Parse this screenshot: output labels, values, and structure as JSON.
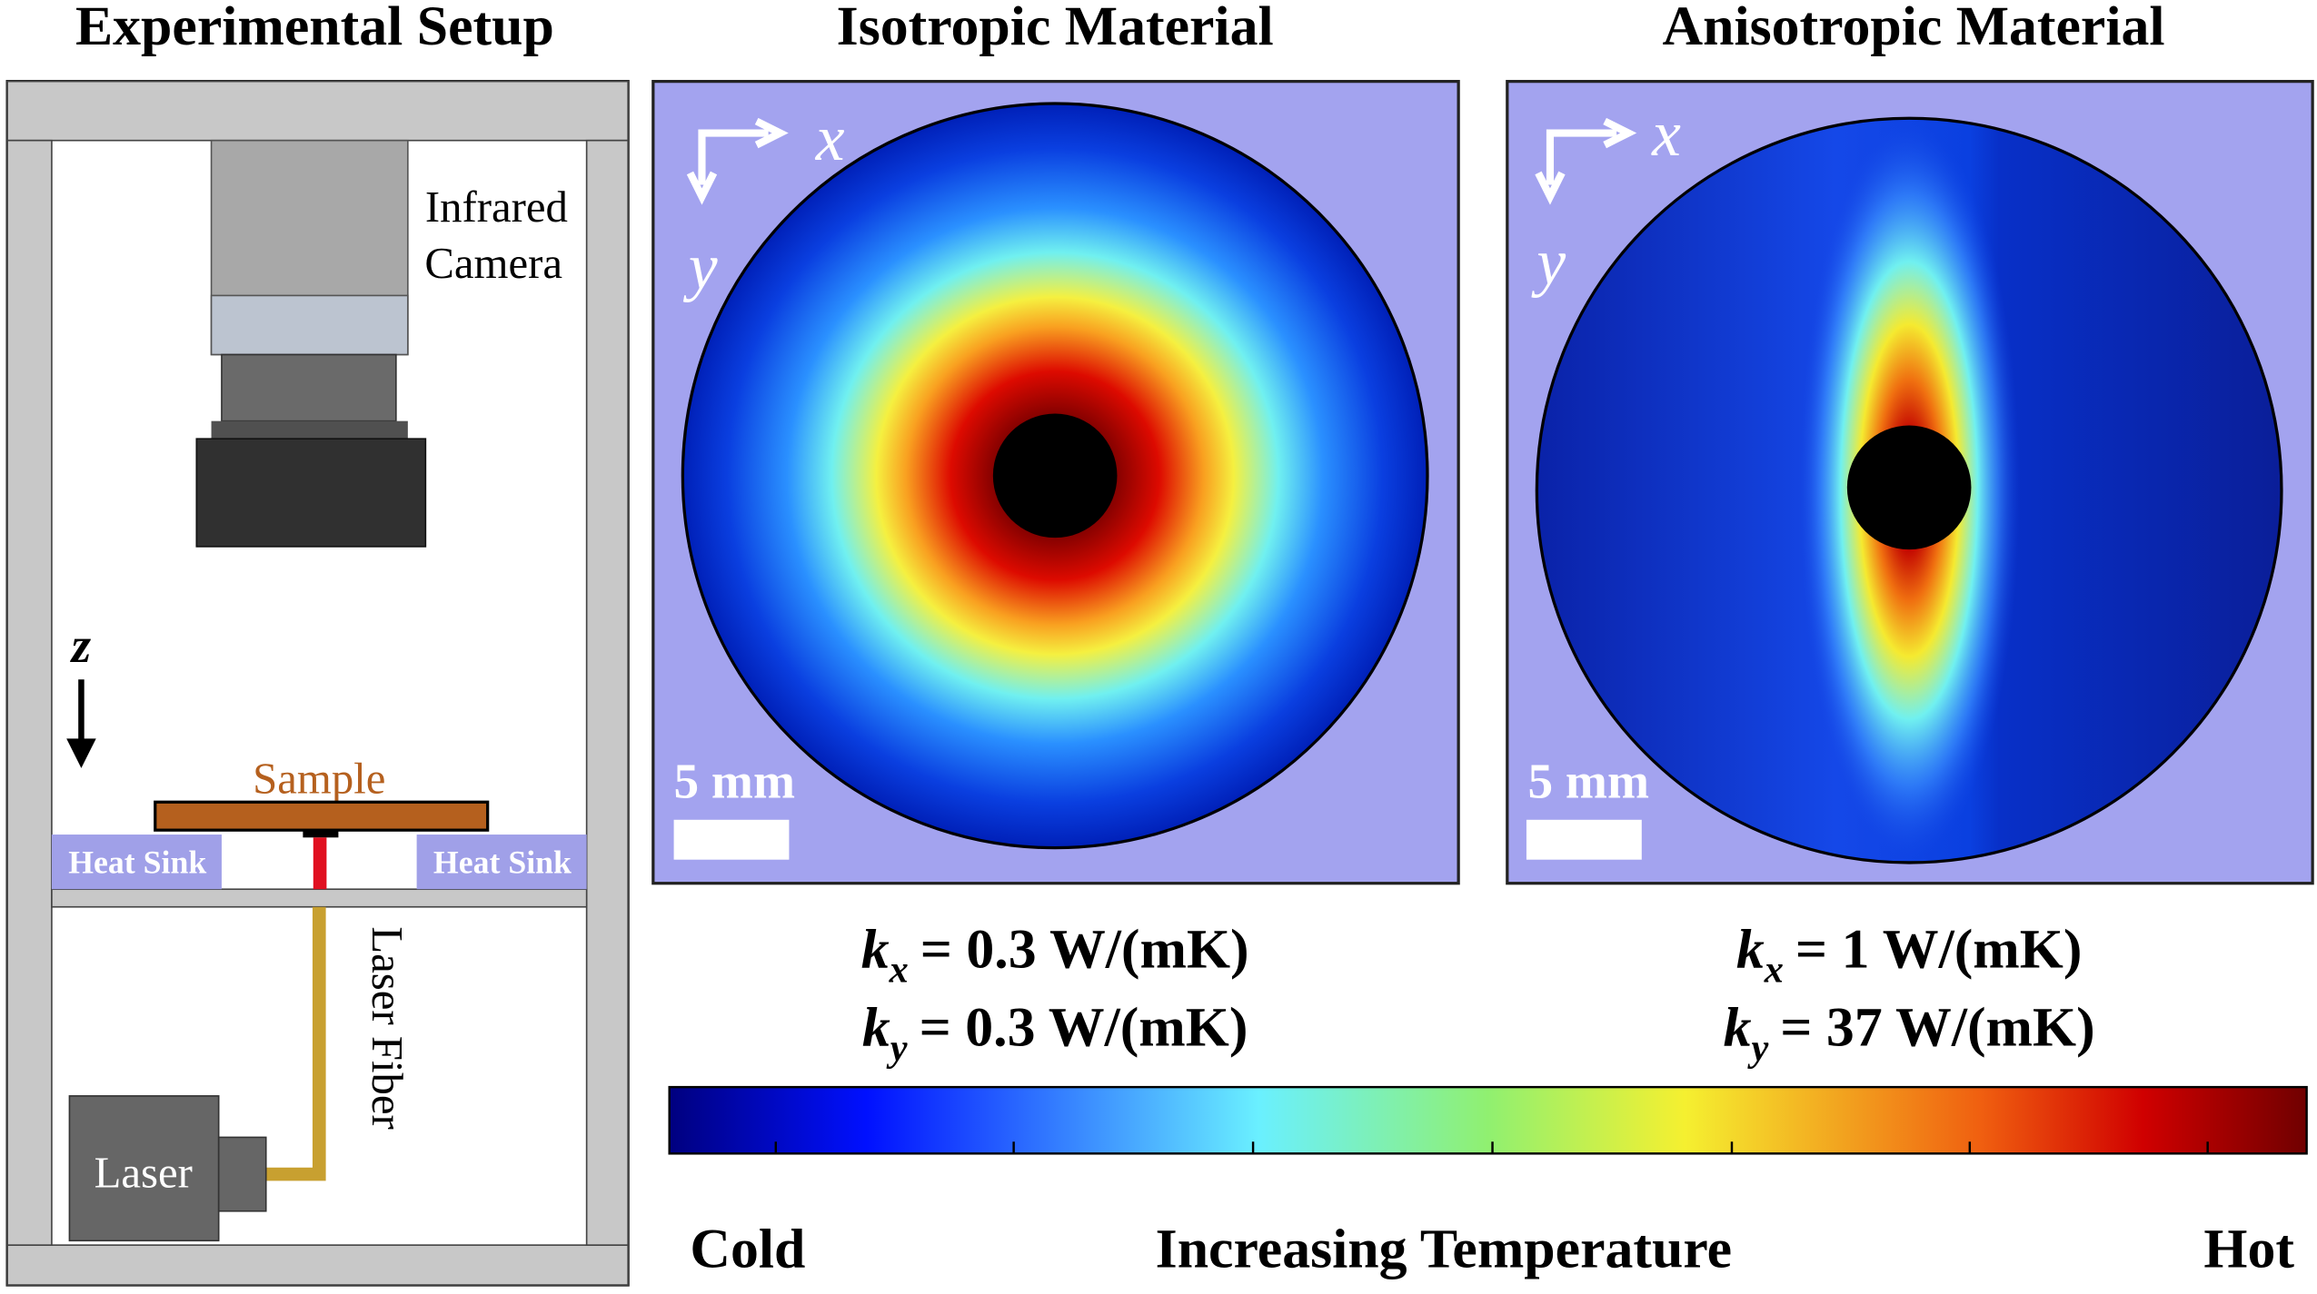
{
  "setup": {
    "title": "Experimental Setup",
    "camera_lines": [
      "Infrared",
      "Camera"
    ],
    "axis": "z",
    "sample": "Sample",
    "heat_sink_left": "Heat Sink",
    "heat_sink_right": "Heat Sink",
    "fiber": "Laser Fiber",
    "laser": "Laser"
  },
  "isotropic": {
    "title": "Isotropic Material",
    "x": "x",
    "y": "y",
    "scale": "5 mm",
    "kx": {
      "symbol": "k",
      "sub": "x",
      "text": "= 0.3 W/(mK)"
    },
    "ky": {
      "symbol": "k",
      "sub": "y",
      "text": "= 0.3 W/(mK)"
    }
  },
  "anisotropic": {
    "title": "Anisotropic Material",
    "x": "x",
    "y": "y",
    "scale": "5 mm",
    "kx": {
      "symbol": "k",
      "sub": "x",
      "text": "= 1 W/(mK)"
    },
    "ky": {
      "symbol": "k",
      "sub": "y",
      "text": "= 37 W/(mK)"
    }
  },
  "colorbar": {
    "cold": "Cold",
    "label": "Increasing Temperature",
    "hot": "Hot"
  }
}
